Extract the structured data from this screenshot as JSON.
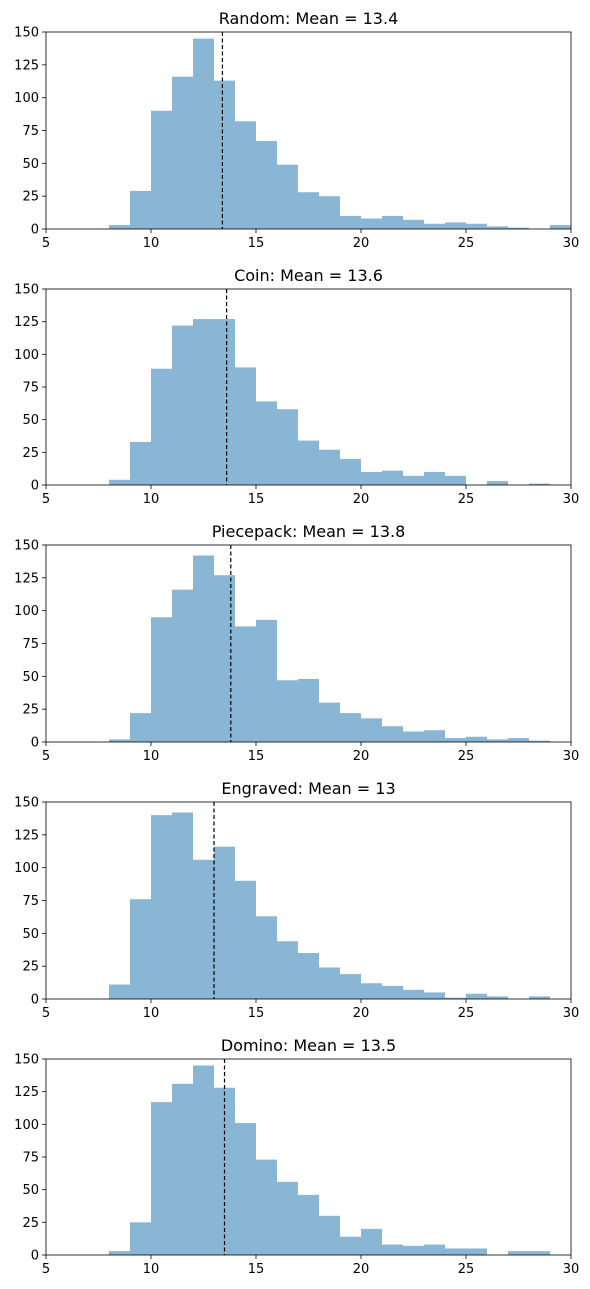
{
  "chart_data": [
    {
      "type": "bar",
      "title": "Random: Mean = 13.4",
      "xlim": [
        5,
        30
      ],
      "ylim": [
        0,
        150
      ],
      "xticks": [
        5,
        10,
        15,
        20,
        25,
        30
      ],
      "yticks": [
        0,
        25,
        50,
        75,
        100,
        125,
        150
      ],
      "mean": 13.4,
      "bin_edges": [
        8,
        9,
        10,
        11,
        12,
        13,
        14,
        15,
        16,
        17,
        18,
        19,
        20,
        21,
        22,
        23,
        24,
        25,
        26,
        27,
        28,
        29,
        30
      ],
      "counts": [
        3,
        29,
        90,
        116,
        145,
        113,
        82,
        67,
        49,
        28,
        25,
        10,
        8,
        10,
        7,
        4,
        5,
        4,
        2,
        1,
        0,
        3
      ],
      "color": "#8ab6d6",
      "mean_line_color": "#000000"
    },
    {
      "type": "bar",
      "title": "Coin: Mean = 13.6",
      "xlim": [
        5,
        30
      ],
      "ylim": [
        0,
        150
      ],
      "xticks": [
        5,
        10,
        15,
        20,
        25,
        30
      ],
      "yticks": [
        0,
        25,
        50,
        75,
        100,
        125,
        150
      ],
      "mean": 13.6,
      "bin_edges": [
        8,
        9,
        10,
        11,
        12,
        13,
        14,
        15,
        16,
        17,
        18,
        19,
        20,
        21,
        22,
        23,
        24,
        25,
        26,
        27,
        28,
        29
      ],
      "counts": [
        4,
        33,
        89,
        122,
        127,
        127,
        90,
        64,
        58,
        34,
        27,
        20,
        10,
        11,
        7,
        10,
        7,
        0,
        3,
        0,
        1
      ],
      "color": "#8ab6d6",
      "mean_line_color": "#000000"
    },
    {
      "type": "bar",
      "title": "Piecepack: Mean = 13.8",
      "xlim": [
        5,
        30
      ],
      "ylim": [
        0,
        150
      ],
      "xticks": [
        5,
        10,
        15,
        20,
        25,
        30
      ],
      "yticks": [
        0,
        25,
        50,
        75,
        100,
        125,
        150
      ],
      "mean": 13.8,
      "bin_edges": [
        8,
        9,
        10,
        11,
        12,
        13,
        14,
        15,
        16,
        17,
        18,
        19,
        20,
        21,
        22,
        23,
        24,
        25,
        26,
        27,
        28,
        29
      ],
      "counts": [
        2,
        22,
        95,
        116,
        142,
        127,
        88,
        93,
        47,
        48,
        30,
        22,
        18,
        12,
        8,
        9,
        3,
        4,
        2,
        3,
        1
      ],
      "color": "#8ab6d6",
      "mean_line_color": "#000000"
    },
    {
      "type": "bar",
      "title": "Engraved: Mean = 13",
      "xlim": [
        5,
        30
      ],
      "ylim": [
        0,
        150
      ],
      "xticks": [
        5,
        10,
        15,
        20,
        25,
        30
      ],
      "yticks": [
        0,
        25,
        50,
        75,
        100,
        125,
        150
      ],
      "mean": 13.0,
      "bin_edges": [
        8,
        9,
        10,
        11,
        12,
        13,
        14,
        15,
        16,
        17,
        18,
        19,
        20,
        21,
        22,
        23,
        24,
        25,
        26,
        27,
        28,
        29
      ],
      "counts": [
        11,
        76,
        140,
        142,
        106,
        116,
        90,
        63,
        44,
        35,
        24,
        19,
        12,
        10,
        7,
        5,
        1,
        4,
        2,
        0,
        2
      ],
      "color": "#8ab6d6",
      "mean_line_color": "#000000"
    },
    {
      "type": "bar",
      "title": "Domino: Mean = 13.5",
      "xlim": [
        5,
        30
      ],
      "ylim": [
        0,
        150
      ],
      "xticks": [
        5,
        10,
        15,
        20,
        25,
        30
      ],
      "yticks": [
        0,
        25,
        50,
        75,
        100,
        125,
        150
      ],
      "mean": 13.5,
      "bin_edges": [
        8,
        9,
        10,
        11,
        12,
        13,
        14,
        15,
        16,
        17,
        18,
        19,
        20,
        21,
        22,
        23,
        24,
        25,
        26,
        27,
        28,
        29
      ],
      "counts": [
        3,
        25,
        117,
        131,
        145,
        128,
        101,
        73,
        56,
        46,
        30,
        14,
        20,
        8,
        7,
        8,
        5,
        5,
        0,
        3,
        3
      ],
      "color": "#8ab6d6",
      "mean_line_color": "#000000"
    }
  ]
}
